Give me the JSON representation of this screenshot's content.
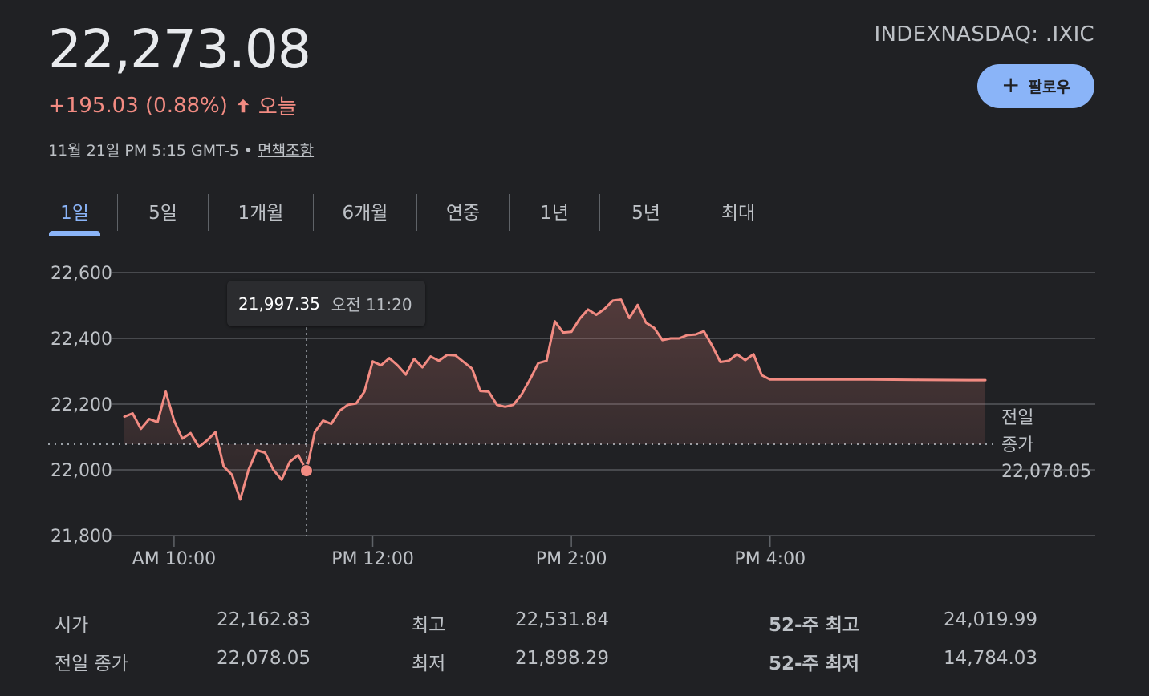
{
  "header": {
    "price": "22,273.08",
    "change": "+195.03 (0.88%)",
    "change_period": "오늘",
    "timestamp": "11월 21일 PM 5:15 GMT-5",
    "separator": "•",
    "disclaimer": "면책조항",
    "ticker": "INDEXNASDAQ: .IXIC",
    "follow_label": "팔로우"
  },
  "tabs": [
    "1일",
    "5일",
    "1개월",
    "6개월",
    "연중",
    "1년",
    "5년",
    "최대"
  ],
  "tooltip": {
    "value": "21,997.35",
    "time": "오전 11:20"
  },
  "stats": [
    {
      "label": "시가",
      "value": "22,162.83"
    },
    {
      "label": "전일 종가",
      "value": "22,078.05"
    },
    {
      "label": "최고",
      "value": "22,531.84"
    },
    {
      "label": "최저",
      "value": "21,898.29"
    },
    {
      "label": "52-주 최고",
      "value": "24,019.99"
    },
    {
      "label": "52-주 최저",
      "value": "14,784.03"
    }
  ],
  "colors": {
    "background": "#202124",
    "line": "#f28b82",
    "accent": "#8ab4f8",
    "text": "#e8eaed",
    "muted": "#bdc1c6",
    "grid": "#5f6368"
  },
  "chart_data": {
    "type": "line",
    "y_tick_labels": [
      "22,600",
      "22,400",
      "22,200",
      "22,000",
      "21,800"
    ],
    "y_ticks": [
      22600,
      22400,
      22200,
      22000,
      21800
    ],
    "x_tick_labels": [
      "AM 10:00",
      "PM 12:00",
      "PM 2:00",
      "PM 4:00"
    ],
    "x_ticks": [
      "10:00",
      "12:00",
      "14:00",
      "16:00"
    ],
    "ylim": [
      21800,
      22600
    ],
    "xlim": [
      "09:30",
      "18:15"
    ],
    "grid": "horizontal",
    "previous_close": {
      "label_line1": "전일",
      "label_line2": "종가",
      "value_label": "22,078.05",
      "value": 22078.05
    },
    "highlight": {
      "x": "11:20",
      "y": 21997.35
    },
    "series": [
      {
        "x": [
          "09:30",
          "09:35",
          "09:40",
          "09:45",
          "09:50",
          "09:55",
          "10:00",
          "10:05",
          "10:10",
          "10:15",
          "10:20",
          "10:25",
          "10:30",
          "10:35",
          "10:40",
          "10:45",
          "10:50",
          "10:55",
          "11:00",
          "11:05",
          "11:10",
          "11:15",
          "11:20",
          "11:25",
          "11:30",
          "11:35",
          "11:40",
          "11:45",
          "11:50",
          "11:55",
          "12:00",
          "12:05",
          "12:10",
          "12:15",
          "12:20",
          "12:25",
          "12:30",
          "12:35",
          "12:40",
          "12:45",
          "12:50",
          "12:55",
          "13:00",
          "13:05",
          "13:10",
          "13:15",
          "13:20",
          "13:25",
          "13:30",
          "13:35",
          "13:40",
          "13:45",
          "13:50",
          "13:55",
          "14:00",
          "14:05",
          "14:10",
          "14:15",
          "14:20",
          "14:25",
          "14:30",
          "14:35",
          "14:40",
          "14:45",
          "14:50",
          "14:55",
          "15:00",
          "15:05",
          "15:10",
          "15:15",
          "15:20",
          "15:25",
          "15:30",
          "15:35",
          "15:40",
          "15:45",
          "15:50",
          "15:55",
          "16:00",
          "16:30",
          "17:00",
          "17:30",
          "18:00",
          "18:10"
        ],
        "y": [
          22162,
          22172,
          22125,
          22155,
          22145,
          22238,
          22150,
          22095,
          22112,
          22070,
          22090,
          22115,
          22010,
          21985,
          21910,
          22000,
          22060,
          22052,
          22000,
          21970,
          22025,
          22045,
          21997,
          22115,
          22150,
          22140,
          22180,
          22198,
          22202,
          22238,
          22330,
          22318,
          22340,
          22318,
          22290,
          22338,
          22312,
          22345,
          22332,
          22350,
          22348,
          22328,
          22308,
          22240,
          22238,
          22198,
          22192,
          22198,
          22230,
          22275,
          22325,
          22332,
          22452,
          22418,
          22420,
          22460,
          22488,
          22472,
          22490,
          22515,
          22518,
          22462,
          22502,
          22448,
          22432,
          22395,
          22400,
          22400,
          22410,
          22412,
          22422,
          22378,
          22328,
          22332,
          22352,
          22334,
          22352,
          22288,
          22275,
          22275,
          22275,
          22274,
          22273,
          22273
        ]
      }
    ]
  }
}
